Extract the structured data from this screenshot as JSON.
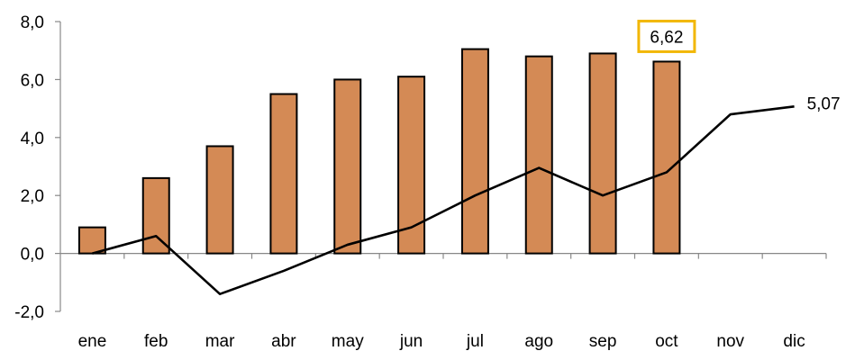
{
  "chart_data": {
    "type": "bar",
    "categories": [
      "ene",
      "feb",
      "mar",
      "abr",
      "may",
      "jun",
      "jul",
      "ago",
      "sep",
      "oct",
      "nov",
      "dic"
    ],
    "series": [
      {
        "type": "bar",
        "values": [
          0.9,
          2.6,
          3.7,
          5.5,
          6.0,
          6.1,
          7.05,
          6.8,
          6.9,
          6.62,
          null,
          null
        ],
        "color": "#D48A55"
      },
      {
        "type": "line",
        "values": [
          0.0,
          0.6,
          -1.4,
          -0.6,
          0.3,
          0.9,
          2.0,
          2.95,
          2.0,
          2.8,
          4.8,
          5.07
        ],
        "color": "#000000"
      }
    ],
    "y_ticks": [
      "-2,0",
      "0,0",
      "2,0",
      "4,0",
      "6,0",
      "8,0"
    ],
    "ylim": [
      -2,
      8
    ],
    "annotations": {
      "bar_last": "6,62",
      "line_last": "5,07"
    },
    "highlight_color": "#F2B705",
    "grid": false,
    "legend": "none"
  }
}
